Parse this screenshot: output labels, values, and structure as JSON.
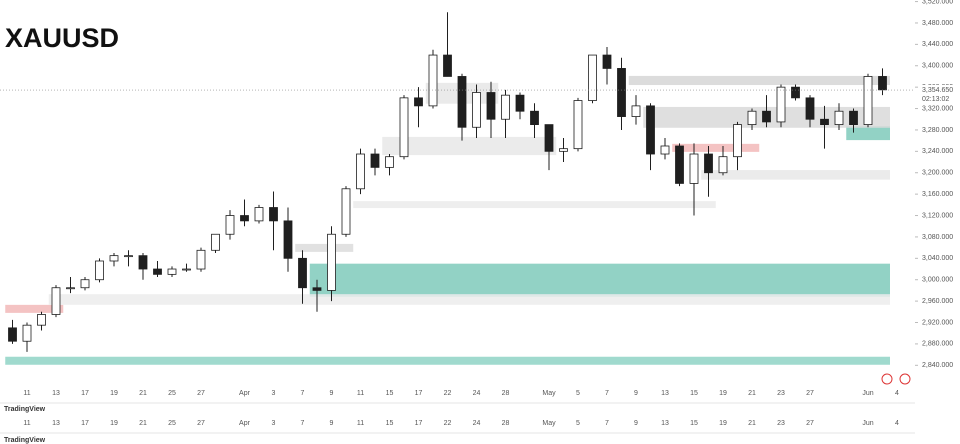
{
  "chart_data": {
    "type": "candlestick",
    "title": "XAUUSD",
    "categories": [
      null,
      "11",
      null,
      "13",
      null,
      "17",
      null,
      "19",
      null,
      "21",
      null,
      "25",
      null,
      "27",
      null,
      null,
      "Apr",
      null,
      "3",
      null,
      "7",
      null,
      "9",
      null,
      "11",
      null,
      "15",
      null,
      "17",
      null,
      "22",
      null,
      "24",
      null,
      "28",
      null,
      null,
      "May",
      null,
      "5",
      null,
      "7",
      null,
      "9",
      null,
      "13",
      null,
      "15",
      null,
      "19",
      null,
      "21",
      null,
      "23",
      null,
      "27",
      null,
      null,
      null,
      "Jun",
      null,
      "4"
    ],
    "open": [
      2910,
      2885,
      2915,
      2935,
      2985,
      2985,
      3000,
      3035,
      3045,
      3045,
      3020,
      3010,
      3020,
      3020,
      3055,
      3085,
      3120,
      3110,
      3135,
      3110,
      3040,
      2985,
      2980,
      3085,
      3170,
      3235,
      3210,
      3230,
      3340,
      3325,
      3420,
      3380,
      3285,
      3350,
      3300,
      3345,
      3315,
      3290,
      3240,
      3245,
      3335,
      3420,
      3395,
      3305,
      3325,
      3235,
      3250,
      3180,
      3235,
      3200,
      3230,
      3290,
      3315,
      3295,
      3360,
      3340,
      3300,
      3290,
      3315,
      3290,
      3380,
      null
    ],
    "high": [
      2925,
      2920,
      2940,
      2990,
      3005,
      3005,
      3040,
      3050,
      3055,
      3050,
      3035,
      3025,
      3030,
      3060,
      3085,
      3130,
      3150,
      3140,
      3165,
      3135,
      3055,
      3000,
      3100,
      3175,
      3245,
      3245,
      3235,
      3345,
      3360,
      3430,
      3500,
      3385,
      3365,
      3370,
      3355,
      3350,
      3330,
      3290,
      3265,
      3340,
      3420,
      3435,
      3415,
      3345,
      3330,
      3265,
      3255,
      3255,
      3250,
      3250,
      3295,
      3320,
      3345,
      3365,
      3365,
      3345,
      3325,
      3330,
      3320,
      3385,
      3395,
      null
    ],
    "low": [
      2880,
      2865,
      2905,
      2930,
      2975,
      2980,
      2995,
      3025,
      3025,
      3000,
      3005,
      3005,
      3015,
      3015,
      3050,
      3075,
      3100,
      3105,
      3055,
      3015,
      2955,
      2940,
      2960,
      3080,
      3160,
      3195,
      3195,
      3225,
      3285,
      3320,
      3380,
      3260,
      3265,
      3265,
      3265,
      3300,
      3265,
      3205,
      3220,
      3240,
      3330,
      3365,
      3280,
      3290,
      3205,
      3225,
      3175,
      3120,
      3155,
      3195,
      3205,
      3280,
      3285,
      3285,
      3335,
      3285,
      3245,
      3280,
      3275,
      3285,
      3345,
      null
    ],
    "close": [
      2885,
      2915,
      2935,
      2985,
      2985,
      3000,
      3035,
      3045,
      3045,
      3020,
      3010,
      3020,
      3020,
      3055,
      3085,
      3120,
      3110,
      3135,
      3110,
      3040,
      2985,
      2980,
      3085,
      3170,
      3235,
      3210,
      3230,
      3340,
      3325,
      3420,
      3380,
      3285,
      3350,
      3300,
      3345,
      3315,
      3290,
      3240,
      3245,
      3335,
      3420,
      3395,
      3305,
      3325,
      3235,
      3250,
      3180,
      3235,
      3200,
      3230,
      3290,
      3315,
      3295,
      3360,
      3340,
      3300,
      3290,
      3315,
      3290,
      3380,
      3355,
      null
    ],
    "ylim": [
      2820,
      3522
    ],
    "yticks": [
      {
        "value": 3520,
        "label": "3,520.000"
      },
      {
        "value": 3480,
        "label": "3,480.000"
      },
      {
        "value": 3440,
        "label": "3,440.000"
      },
      {
        "value": 3400,
        "label": "3,400.000"
      },
      {
        "value": 3360,
        "label": "3,360.000"
      },
      {
        "value": 3320,
        "label": "3,320.000"
      },
      {
        "value": 3280,
        "label": "3,280.000"
      },
      {
        "value": 3240,
        "label": "3,240.000"
      },
      {
        "value": 3200,
        "label": "3,200.000"
      },
      {
        "value": 3160,
        "label": "3,160.000"
      },
      {
        "value": 3120,
        "label": "3,120.000"
      },
      {
        "value": 3080,
        "label": "3,080.000"
      },
      {
        "value": 3040,
        "label": "3,040.000"
      },
      {
        "value": 3000,
        "label": "3,000.000"
      },
      {
        "value": 2960,
        "label": "2,960.000"
      },
      {
        "value": 2920,
        "label": "2,920.000"
      },
      {
        "value": 2880,
        "label": "2,880.000"
      },
      {
        "value": 2840,
        "label": "2,840.000"
      }
    ],
    "last_price": {
      "value": 3354.65,
      "label": "3,354.650"
    },
    "countdown": "02:13:02",
    "watermark": "TradingView",
    "up_color": "#ffffff",
    "down_color": "#1f1f1f",
    "zones": [
      {
        "from": 0,
        "to": 61,
        "low": 2841,
        "high": 2856,
        "color": "#8fd3c6"
      },
      {
        "from": 21,
        "to": 61,
        "low": 2968,
        "high": 3030,
        "color": "#7fcabb"
      },
      {
        "from": 58,
        "to": 61,
        "low": 3261,
        "high": 3287,
        "color": "#7fcabb"
      },
      {
        "from": 0,
        "to": 3,
        "low": 2938,
        "high": 2953,
        "color": "#f2b8b8"
      },
      {
        "from": 46,
        "to": 51,
        "low": 3239,
        "high": 3254,
        "color": "#f2b8b8"
      },
      {
        "from": 43,
        "to": 61,
        "low": 3364,
        "high": 3381,
        "color": "#d6d6d6"
      },
      {
        "from": 44,
        "to": 61,
        "low": 3284,
        "high": 3323,
        "color": "#d9d9d9"
      },
      {
        "from": 29,
        "to": 33,
        "low": 3329,
        "high": 3368,
        "color": "#e6e6e6"
      },
      {
        "from": 26,
        "to": 37,
        "low": 3233,
        "high": 3267,
        "color": "#e8e8e8"
      },
      {
        "from": 48,
        "to": 61,
        "low": 3187,
        "high": 3205,
        "color": "#e8e8e8"
      },
      {
        "from": 24,
        "to": 48,
        "low": 3134,
        "high": 3147,
        "color": "#ebebeb"
      },
      {
        "from": 20,
        "to": 23,
        "low": 3052,
        "high": 3067,
        "color": "#dcdcdc"
      },
      {
        "from": 3,
        "to": 61,
        "low": 2953,
        "high": 2973,
        "color": "#ececec"
      }
    ]
  }
}
